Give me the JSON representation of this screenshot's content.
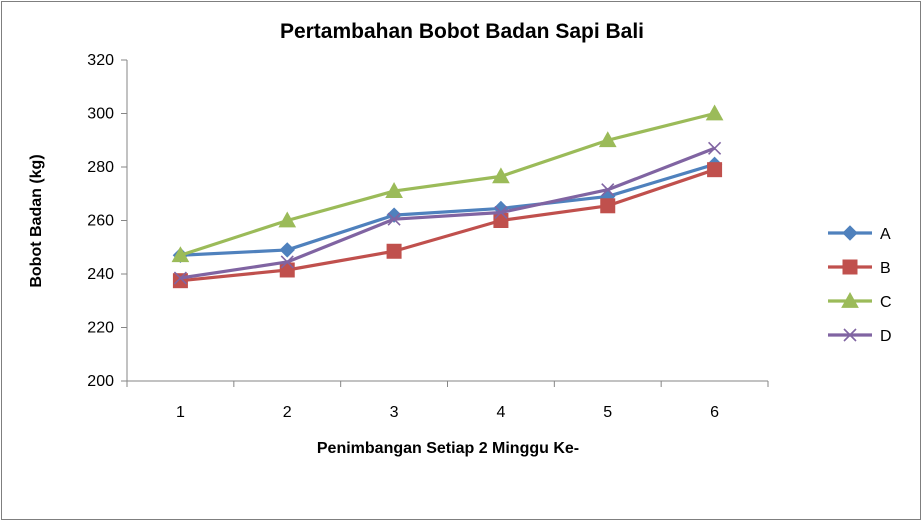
{
  "chart_data": {
    "type": "line",
    "title": "Pertambahan Bobot Badan Sapi Bali",
    "xlabel": "Penimbangan Setiap 2 Minggu Ke-",
    "ylabel": "Bobot Badan (kg)",
    "x": [
      "1",
      "2",
      "3",
      "4",
      "5",
      "6"
    ],
    "ylim": [
      200,
      320
    ],
    "yticks": [
      "200",
      "220",
      "240",
      "260",
      "280",
      "300",
      "320"
    ],
    "grid": false,
    "legend": "right",
    "series": [
      {
        "name": "A",
        "color": "#4f81bd",
        "marker": "diamond",
        "values": [
          247,
          249,
          262,
          264.5,
          269,
          281
        ]
      },
      {
        "name": "B",
        "color": "#c0504d",
        "marker": "square",
        "values": [
          237.5,
          241.5,
          248.5,
          260,
          265.5,
          279
        ]
      },
      {
        "name": "C",
        "color": "#9bbb59",
        "marker": "triangle",
        "values": [
          247,
          260,
          271,
          276.5,
          290,
          300
        ]
      },
      {
        "name": "D",
        "color": "#8064a2",
        "marker": "x",
        "values": [
          238.5,
          244.5,
          260.5,
          263,
          271.5,
          287
        ]
      }
    ]
  }
}
